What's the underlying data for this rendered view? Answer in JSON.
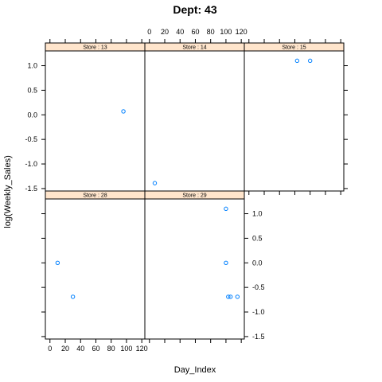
{
  "chart_data": {
    "type": "scatter",
    "layout": "trellis",
    "title": "Dept: 43",
    "xlabel": "Day_Index",
    "ylabel": "log(Weekly_Sales)",
    "xlim": [
      -6,
      124
    ],
    "ylim": [
      -1.55,
      1.3
    ],
    "x_ticks": [
      0,
      20,
      40,
      60,
      80,
      100,
      120
    ],
    "y_ticks": [
      1.0,
      0.5,
      0.0,
      -0.5,
      -1.0,
      -1.5
    ],
    "x_tick_labels": [
      "0",
      "20",
      "40",
      "60",
      "80",
      "100",
      "120"
    ],
    "y_tick_labels": [
      "1.0",
      "0.5",
      "0.0",
      "-0.5",
      "-1.0",
      "-1.5"
    ],
    "grid": false,
    "marker": "open-circle",
    "marker_color": "#0080ff",
    "strip_fill": "#ffe5cc",
    "panels": [
      {
        "label": "Store : 13",
        "row": 0,
        "col": 0,
        "x": [
          96
        ],
        "y": [
          0.07
        ]
      },
      {
        "label": "Store : 14",
        "row": 0,
        "col": 1,
        "x": [
          7
        ],
        "y": [
          -1.39
        ]
      },
      {
        "label": "Store : 15",
        "row": 0,
        "col": 2,
        "x": [
          63,
          80
        ],
        "y": [
          1.1,
          1.1
        ]
      },
      {
        "label": "Store : 28",
        "row": 1,
        "col": 0,
        "x": [
          10,
          30
        ],
        "y": [
          0.0,
          -0.69
        ]
      },
      {
        "label": "Store : 29",
        "row": 1,
        "col": 1,
        "x": [
          100,
          100,
          103,
          106,
          115
        ],
        "y": [
          1.1,
          0.0,
          -0.69,
          -0.69,
          -0.69
        ]
      }
    ]
  }
}
